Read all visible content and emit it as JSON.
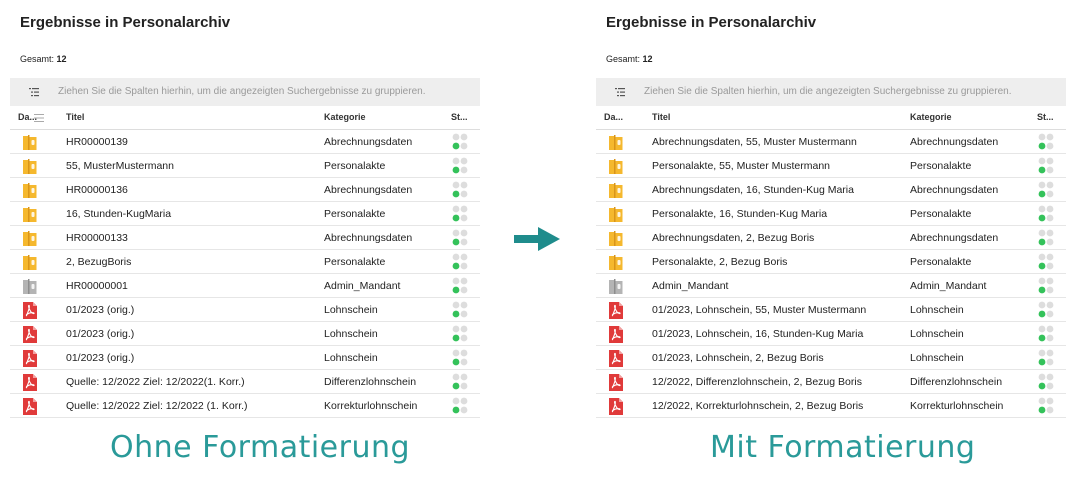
{
  "colors": {
    "accent": "#2a9a99",
    "folder": "#f5b82e",
    "folder_grey": "#b4b4b4",
    "pdf": "#e03a3a",
    "status_on": "#34c25a",
    "status_off": "#dddddd"
  },
  "left": {
    "title": "Ergebnisse in Personalarchiv",
    "total_label": "Gesamt:",
    "total_value": "12",
    "group_hint": "Ziehen Sie die Spalten hierhin, um die angezeigten Suchergebnisse zu gruppieren.",
    "headers": {
      "da": "Da...",
      "titel": "Titel",
      "kategorie": "Kategorie",
      "status": "St..."
    },
    "rows": [
      {
        "icon": "folder-icon",
        "title": "HR00000139",
        "kategorie": "Abrechnungsdaten"
      },
      {
        "icon": "folder-icon",
        "title": "55, MusterMustermann",
        "kategorie": "Personalakte"
      },
      {
        "icon": "folder-icon",
        "title": "HR00000136",
        "kategorie": "Abrechnungsdaten"
      },
      {
        "icon": "folder-icon",
        "title": "16, Stunden-KugMaria",
        "kategorie": "Personalakte"
      },
      {
        "icon": "folder-icon",
        "title": "HR00000133",
        "kategorie": "Abrechnungsdaten"
      },
      {
        "icon": "folder-icon",
        "title": "2, BezugBoris",
        "kategorie": "Personalakte"
      },
      {
        "icon": "folder-grey-icon",
        "title": "HR00000001",
        "kategorie": "Admin_Mandant"
      },
      {
        "icon": "pdf-icon",
        "title": " 01/2023 (orig.)",
        "kategorie": "Lohnschein"
      },
      {
        "icon": "pdf-icon",
        "title": " 01/2023 (orig.)",
        "kategorie": "Lohnschein"
      },
      {
        "icon": "pdf-icon",
        "title": " 01/2023 (orig.)",
        "kategorie": "Lohnschein"
      },
      {
        "icon": "pdf-icon",
        "title": "Quelle: 12/2022 Ziel: 12/2022(1. Korr.)",
        "kategorie": "Differenzlohnschein"
      },
      {
        "icon": "pdf-icon",
        "title": "Quelle: 12/2022 Ziel: 12/2022 (1. Korr.)",
        "kategorie": "Korrekturlohnschein"
      }
    ]
  },
  "right": {
    "title": "Ergebnisse in Personalarchiv",
    "total_label": "Gesamt:",
    "total_value": "12",
    "group_hint": "Ziehen Sie die Spalten hierhin, um die angezeigten Suchergebnisse zu gruppieren.",
    "headers": {
      "da": "Da...",
      "titel": "Titel",
      "kategorie": "Kategorie",
      "status": "St..."
    },
    "rows": [
      {
        "icon": "folder-icon",
        "title": "Abrechnungsdaten, 55, Muster Mustermann",
        "kategorie": "Abrechnungsdaten"
      },
      {
        "icon": "folder-icon",
        "title": "Personalakte, 55, Muster Mustermann",
        "kategorie": "Personalakte"
      },
      {
        "icon": "folder-icon",
        "title": "Abrechnungsdaten, 16, Stunden-Kug Maria",
        "kategorie": "Abrechnungsdaten"
      },
      {
        "icon": "folder-icon",
        "title": "Personalakte, 16, Stunden-Kug Maria",
        "kategorie": "Personalakte"
      },
      {
        "icon": "folder-icon",
        "title": "Abrechnungsdaten, 2, Bezug Boris",
        "kategorie": "Abrechnungsdaten"
      },
      {
        "icon": "folder-icon",
        "title": "Personalakte, 2, Bezug Boris",
        "kategorie": "Personalakte"
      },
      {
        "icon": "folder-grey-icon",
        "title": "Admin_Mandant",
        "kategorie": "Admin_Mandant"
      },
      {
        "icon": "pdf-icon",
        "title": "01/2023, Lohnschein, 55, Muster Mustermann",
        "kategorie": "Lohnschein"
      },
      {
        "icon": "pdf-icon",
        "title": "01/2023, Lohnschein, 16, Stunden-Kug Maria",
        "kategorie": "Lohnschein"
      },
      {
        "icon": "pdf-icon",
        "title": "01/2023, Lohnschein, 2, Bezug Boris",
        "kategorie": "Lohnschein"
      },
      {
        "icon": "pdf-icon",
        "title": "12/2022, Differenzlohnschein, 2, Bezug Boris",
        "kategorie": "Differenzlohnschein"
      },
      {
        "icon": "pdf-icon",
        "title": "12/2022, Korrekturlohnschein, 2, Bezug Boris",
        "kategorie": "Korrekturlohnschein"
      }
    ]
  },
  "captions": {
    "left": "Ohne Formatierung",
    "right": "Mit Formatierung"
  }
}
